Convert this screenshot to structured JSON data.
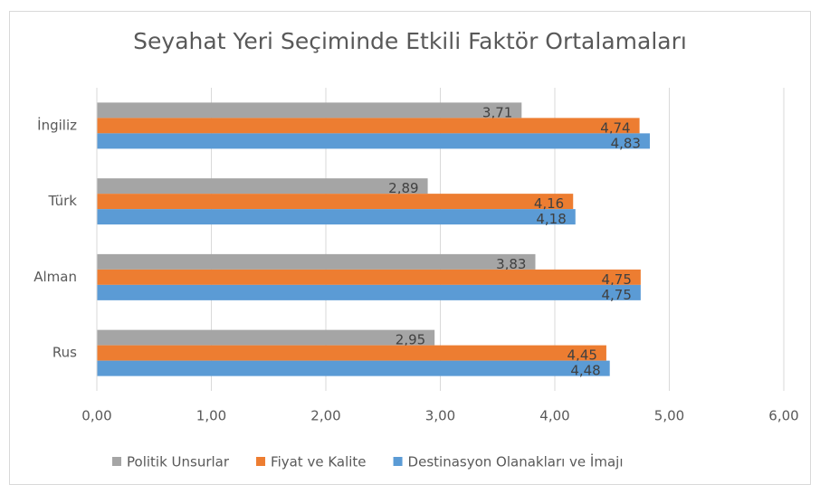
{
  "chart_data": {
    "type": "bar",
    "orientation": "horizontal",
    "title": "Seyahat Yeri Seçiminde Etkili Faktör Ortalamaları",
    "categories": [
      "İngiliz",
      "Türk",
      "Alman",
      "Rus"
    ],
    "series": [
      {
        "name": "Politik Unsurlar",
        "color": "#a5a5a5",
        "values": [
          3.71,
          2.89,
          3.83,
          2.95
        ],
        "value_labels": [
          "3,71",
          "2,89",
          "3,83",
          "2,95"
        ]
      },
      {
        "name": "Fiyat ve Kalite",
        "color": "#ed7d31",
        "values": [
          4.74,
          4.16,
          4.75,
          4.45
        ],
        "value_labels": [
          "4,74",
          "4,16",
          "4,75",
          "4,45"
        ]
      },
      {
        "name": "Destinasyon Olanakları ve İmajı",
        "color": "#5b9bd5",
        "values": [
          4.83,
          4.18,
          4.75,
          4.48
        ],
        "value_labels": [
          "4,83",
          "4,18",
          "4,75",
          "4,48"
        ]
      }
    ],
    "xlim": [
      0,
      6
    ],
    "xticks": [
      {
        "value": 0,
        "label": "0,00"
      },
      {
        "value": 1,
        "label": "1,00"
      },
      {
        "value": 2,
        "label": "2,00"
      },
      {
        "value": 3,
        "label": "3,00"
      },
      {
        "value": 4,
        "label": "4,00"
      },
      {
        "value": 5,
        "label": "5,00"
      },
      {
        "value": 6,
        "label": "6,00"
      }
    ],
    "grid": true,
    "legend": "bottom"
  }
}
